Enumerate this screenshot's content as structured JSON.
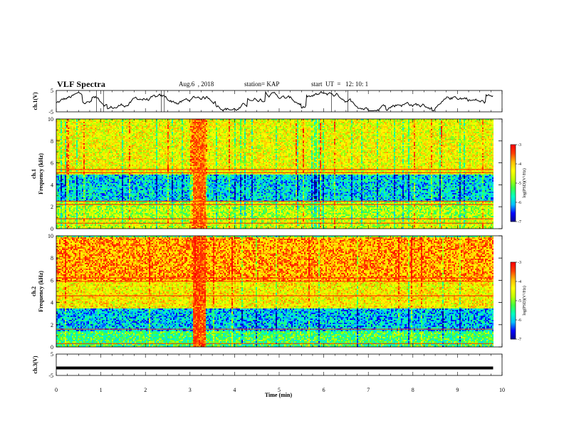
{
  "header": {
    "title": "VLF Spectra",
    "date": "Aug.6  , 2018",
    "station": "station= KAP",
    "start": "start  UT  =   12: 10: 1"
  },
  "chart_data": [
    {
      "type": "line",
      "panel": "ch1-waveform",
      "ylabel": "ch.1(V)",
      "ylim": [
        -5,
        5
      ],
      "yticks": [
        "5",
        "-5"
      ],
      "xlim": [
        0,
        10
      ],
      "note_series": "noisy waveform spanning roughly -4 to 4 V over 0-9.8 min"
    },
    {
      "type": "heatmap",
      "panel": "ch1-spectrogram",
      "ylabel": "ch.1\nFrequency (kHz)",
      "ylabel_lines": [
        "ch.1",
        "Frequency (kHz)"
      ],
      "ylim": [
        0,
        10
      ],
      "yticks": [
        "0",
        "2",
        "4",
        "6",
        "8",
        "10"
      ],
      "xlim": [
        0,
        9.8
      ],
      "colorbar": {
        "label": "log(PSD)(V²/Hz)",
        "range": [
          -7,
          -3
        ],
        "ticks": [
          "-3",
          "-4",
          "-5",
          "-6",
          "-7"
        ]
      },
      "bands": [
        {
          "f_lo": 0,
          "f_hi": 1.0,
          "level": -4.6
        },
        {
          "f_lo": 1.0,
          "f_hi": 2.5,
          "level": -4.8
        },
        {
          "f_lo": 2.5,
          "f_hi": 5.0,
          "level": -5.9
        },
        {
          "f_lo": 5.0,
          "f_hi": 10.0,
          "level": -4.4
        }
      ],
      "lines_khz": [
        0.5,
        0.9,
        2.2,
        2.5,
        5.1,
        5.4
      ],
      "burst": {
        "t_lo": 3.05,
        "t_hi": 3.35,
        "level": -3.6
      }
    },
    {
      "type": "heatmap",
      "panel": "ch2-spectrogram",
      "ylabel": "ch.2\nFrequency (kHz)",
      "ylabel_lines": [
        "ch.2",
        "Frequency (kHz)"
      ],
      "ylim": [
        0,
        10
      ],
      "yticks": [
        "0",
        "2",
        "4",
        "6",
        "8",
        "10"
      ],
      "xlim": [
        0,
        9.8
      ],
      "colorbar": {
        "label": "log(PSD)(V²/Hz)",
        "range": [
          -7,
          -3
        ],
        "ticks": [
          "-3",
          "-4",
          "-5",
          "-6",
          "-7"
        ]
      },
      "bands": [
        {
          "f_lo": 0,
          "f_hi": 1.5,
          "level": -5.3
        },
        {
          "f_lo": 1.5,
          "f_hi": 3.5,
          "level": -6.0
        },
        {
          "f_lo": 3.5,
          "f_hi": 6.0,
          "level": -4.3
        },
        {
          "f_lo": 6.0,
          "f_hi": 10.0,
          "level": -3.8
        }
      ],
      "lines_khz": [
        0.3,
        1.6,
        4.6,
        5.9,
        6.2
      ],
      "burst": {
        "t_lo": 3.05,
        "t_hi": 3.35,
        "level": -3.5
      }
    },
    {
      "type": "line",
      "panel": "ch3-waveform",
      "ylabel": "ch.3(V)",
      "ylim": [
        -5,
        5
      ],
      "yticks": [
        "5",
        "-5"
      ],
      "xlim": [
        0,
        10
      ],
      "xlabel": "Time  (min)",
      "xticks": [
        "0",
        "1",
        "2",
        "3",
        "4",
        "5",
        "6",
        "7",
        "8",
        "9",
        "10"
      ],
      "constant_value": -1.5
    }
  ],
  "colors": {
    "colormap": [
      "#00008f",
      "#0000ff",
      "#00bfff",
      "#00ffbf",
      "#40ff40",
      "#bfff00",
      "#ffff00",
      "#ffbf00",
      "#ff4000",
      "#ff0000",
      "#ffffff"
    ]
  }
}
